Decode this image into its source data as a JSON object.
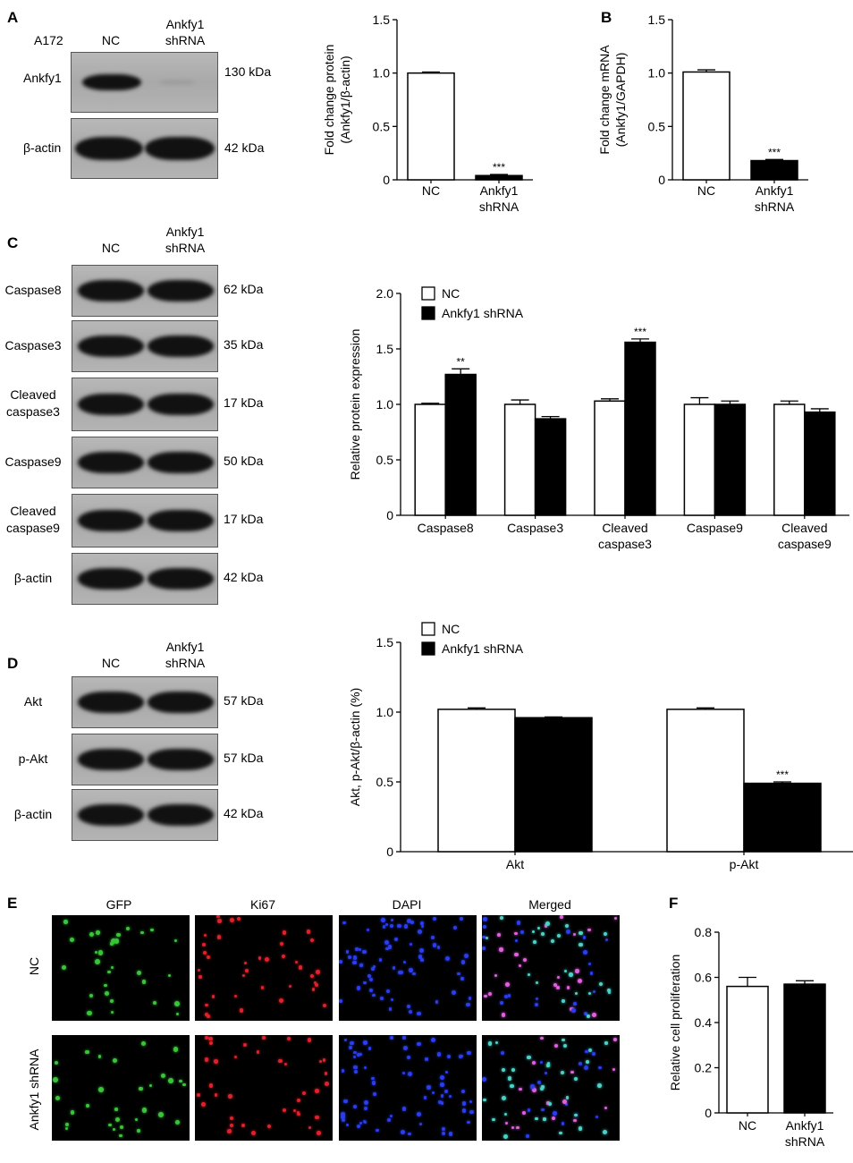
{
  "panel_labels": {
    "a": "A",
    "b": "B",
    "c": "C",
    "d": "D",
    "e": "E",
    "f": "F"
  },
  "panel_a": {
    "cell_line": "A172",
    "lanes": [
      "NC",
      "Ankfy1\nshRNA"
    ],
    "blots": [
      {
        "label": "Ankfy1",
        "kda": "130 kDa"
      },
      {
        "label": "β-actin",
        "kda": "42 kDa"
      }
    ]
  },
  "panel_c": {
    "lanes": [
      "NC",
      "Ankfy1\nshRNA"
    ],
    "blots": [
      {
        "label": "Caspase8",
        "kda": "62 kDa"
      },
      {
        "label": "Caspase3",
        "kda": "35 kDa"
      },
      {
        "label": "Cleaved\ncaspase3",
        "kda": "17 kDa"
      },
      {
        "label": "Caspase9",
        "kda": "50 kDa"
      },
      {
        "label": "Cleaved\ncaspase9",
        "kda": "17 kDa"
      },
      {
        "label": "β-actin",
        "kda": "42 kDa"
      }
    ]
  },
  "panel_d": {
    "lanes": [
      "NC",
      "Ankfy1\nshRNA"
    ],
    "blots": [
      {
        "label": "Akt",
        "kda": "57 kDa"
      },
      {
        "label": "p-Akt",
        "kda": "57 kDa"
      },
      {
        "label": "β-actin",
        "kda": "42 kDa"
      }
    ]
  },
  "panel_e": {
    "columns": [
      "GFP",
      "Ki67",
      "DAPI",
      "Merged"
    ],
    "rows": [
      "NC",
      "Ankfy1 shRNA"
    ]
  },
  "colors": {
    "nc_fill": "#ffffff",
    "shrna_fill": "#000000",
    "gfp": "#39c43a",
    "ki67": "#e0202a",
    "dapi": "#2a3df0"
  },
  "chart_data": [
    {
      "id": "A-chart",
      "type": "bar",
      "categories": [
        "NC",
        "Ankfy1\nshRNA"
      ],
      "values": [
        1.0,
        0.04
      ],
      "errors": [
        0.01,
        0.01
      ],
      "significance": [
        "",
        "***"
      ],
      "ylabel": "Fold change protein\n(Ankfy1/β-actin)",
      "ylim": [
        0,
        1.5
      ],
      "yticks": [
        "0",
        "0.5",
        "1.0",
        "1.5"
      ]
    },
    {
      "id": "B-chart",
      "type": "bar",
      "categories": [
        "NC",
        "Ankfy1\nshRNA"
      ],
      "values": [
        1.01,
        0.18
      ],
      "errors": [
        0.02,
        0.01
      ],
      "significance": [
        "",
        "***"
      ],
      "ylabel": "Fold change mRNA\n(Ankfy1/GAPDH)",
      "ylim": [
        0,
        1.5
      ],
      "yticks": [
        "0",
        "0.5",
        "1.0",
        "1.5"
      ]
    },
    {
      "id": "C-chart",
      "type": "bar",
      "categories": [
        "Caspase8",
        "Caspase3",
        "Cleaved\ncaspase3",
        "Caspase9",
        "Cleaved\ncaspase9"
      ],
      "series": [
        {
          "name": "NC",
          "values": [
            1.0,
            1.0,
            1.03,
            1.0,
            1.0
          ],
          "errors": [
            0.01,
            0.04,
            0.02,
            0.06,
            0.03
          ]
        },
        {
          "name": "Ankfy1 shRNA",
          "values": [
            1.27,
            0.87,
            1.56,
            1.0,
            0.93
          ],
          "errors": [
            0.05,
            0.02,
            0.03,
            0.03,
            0.03
          ],
          "significance": [
            "**",
            "",
            "***",
            "",
            ""
          ]
        }
      ],
      "ylabel": "Relative protein expression",
      "ylim": [
        0,
        2.0
      ],
      "yticks": [
        "0",
        "0.5",
        "1.0",
        "1.5",
        "2.0"
      ],
      "legend": "top-left"
    },
    {
      "id": "D-chart",
      "type": "bar",
      "categories": [
        "Akt",
        "p-Akt"
      ],
      "series": [
        {
          "name": "NC",
          "values": [
            1.02,
            1.02
          ],
          "errors": [
            0.01,
            0.01
          ]
        },
        {
          "name": "Ankfy1 shRNA",
          "values": [
            0.96,
            0.49
          ],
          "errors": [
            0.005,
            0.01
          ],
          "significance": [
            "",
            "***"
          ]
        }
      ],
      "ylabel": "Akt, p-Akt/β-actin (%)",
      "ylim": [
        0,
        1.5
      ],
      "yticks": [
        "0",
        "0.5",
        "1.0",
        "1.5"
      ],
      "legend": "top-left"
    },
    {
      "id": "F-chart",
      "type": "bar",
      "categories": [
        "NC",
        "Ankfy1\nshRNA"
      ],
      "values": [
        0.56,
        0.57
      ],
      "errors": [
        0.04,
        0.015
      ],
      "significance": [
        "",
        ""
      ],
      "ylabel": "Relative cell proliferation",
      "ylim": [
        0,
        0.8
      ],
      "yticks": [
        "0",
        "0.2",
        "0.4",
        "0.6",
        "0.8"
      ]
    }
  ]
}
